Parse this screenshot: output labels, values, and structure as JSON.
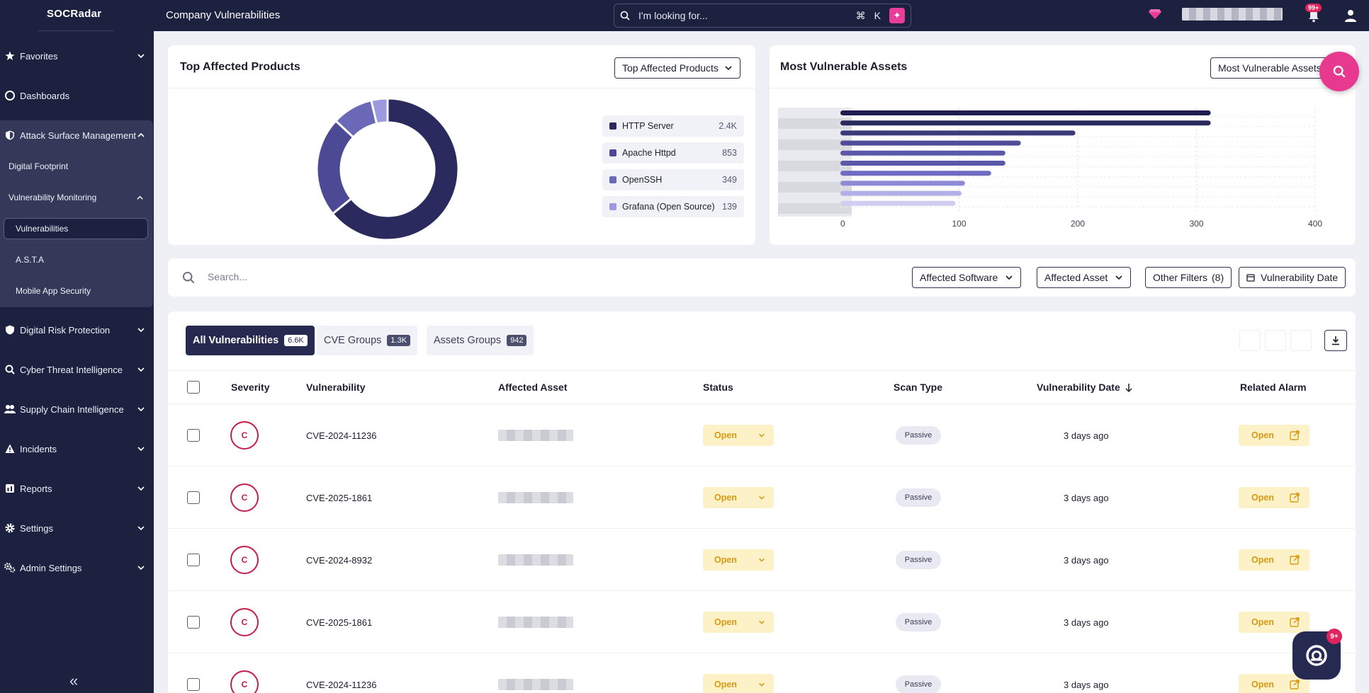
{
  "app": {
    "logo": "SOCRadar",
    "page_title": "Company Vulnerabilities"
  },
  "topbar": {
    "search_placeholder": "I'm looking for...",
    "shortcut_cmd": "⌘",
    "shortcut_key": "K",
    "notif_badge": "99+"
  },
  "sidebar": {
    "items": [
      {
        "label": "Favorites",
        "icon": "star-icon"
      },
      {
        "label": "Dashboards",
        "icon": "dashboard-icon"
      },
      {
        "label": "Attack Surface Management",
        "icon": "shield-icon"
      },
      {
        "label": "Digital Risk Protection",
        "icon": "shield-icon"
      },
      {
        "label": "Cyber Threat Intelligence",
        "icon": "search-icon"
      },
      {
        "label": "Supply Chain Intelligence",
        "icon": "people-icon"
      },
      {
        "label": "Incidents",
        "icon": "alert-icon"
      },
      {
        "label": "Reports",
        "icon": "report-icon"
      },
      {
        "label": "Settings",
        "icon": "gear-icon"
      },
      {
        "label": "Admin Settings",
        "icon": "admin-gear-icon"
      }
    ],
    "asm_sub": {
      "digital_footprint": "Digital Footprint",
      "vuln_monitoring": "Vulnerability Monitoring",
      "vulnerabilities": "Vulnerabilities",
      "asta": "A.S.T.A",
      "mobile": "Mobile App Security"
    },
    "collapse": "«"
  },
  "top_products": {
    "title": "Top Affected Products",
    "dropdown": "Top Affected Products",
    "legend": [
      {
        "label": "HTTP Server",
        "value": "2.4K",
        "color": "#2b2a5e"
      },
      {
        "label": "Apache Httpd",
        "value": "853",
        "color": "#4c4a94"
      },
      {
        "label": "OpenSSH",
        "value": "349",
        "color": "#6b68b8"
      },
      {
        "label": "Grafana (Open Source)",
        "value": "139",
        "color": "#9c99e0"
      }
    ]
  },
  "vuln_assets": {
    "title": "Most Vulnerable Assets",
    "dropdown": "Most Vulnerable Assets"
  },
  "chart_data": [
    {
      "type": "pie",
      "categories": [
        "HTTP Server",
        "Apache Httpd",
        "OpenSSH",
        "Grafana (Open Source)"
      ],
      "values": [
        2400,
        853,
        349,
        139
      ],
      "donut": true
    },
    {
      "type": "bar",
      "orientation": "horizontal",
      "values": [
        312,
        312,
        198,
        152,
        139,
        139,
        127,
        105,
        102,
        97
      ],
      "colors": [
        "#1f1d4f",
        "#2b2a5e",
        "#3b3a7a",
        "#4f4c9a",
        "#5b58aa",
        "#5b58aa",
        "#6e6bc0",
        "#8e8bd6",
        "#b2b0e6",
        "#cfcdf1"
      ],
      "xlim": [
        0,
        400
      ],
      "xticks": [
        "0",
        "100",
        "200",
        "300",
        "400"
      ]
    }
  ],
  "filters": {
    "search_placeholder": "Search...",
    "affected_software": "Affected Software",
    "affected_asset": "Affected Asset",
    "other_filters": "Other Filters",
    "other_filters_count": "(8)",
    "vuln_date": "Vulnerability Date"
  },
  "tabs": [
    {
      "label": "All Vulnerabilities",
      "count": "6.6K"
    },
    {
      "label": "CVE Groups",
      "count": "1.3K"
    },
    {
      "label": "Assets Groups",
      "count": "942"
    }
  ],
  "table": {
    "headers": {
      "severity": "Severity",
      "vulnerability": "Vulnerability",
      "asset": "Affected Asset",
      "status": "Status",
      "scan": "Scan Type",
      "date": "Vulnerability Date",
      "alarm": "Related Alarm"
    },
    "rows": [
      {
        "severity": "C",
        "vuln": "CVE-2024-11236",
        "status": "Open",
        "scan": "Passive",
        "date": "3 days ago",
        "alarm": "Open"
      },
      {
        "severity": "C",
        "vuln": "CVE-2025-1861",
        "status": "Open",
        "scan": "Passive",
        "date": "3 days ago",
        "alarm": "Open"
      },
      {
        "severity": "C",
        "vuln": "CVE-2024-8932",
        "status": "Open",
        "scan": "Passive",
        "date": "3 days ago",
        "alarm": "Open"
      },
      {
        "severity": "C",
        "vuln": "CVE-2025-1861",
        "status": "Open",
        "scan": "Passive",
        "date": "3 days ago",
        "alarm": "Open"
      },
      {
        "severity": "C",
        "vuln": "CVE-2024-11236",
        "status": "Open",
        "scan": "Passive",
        "date": "3 days ago",
        "alarm": "Open"
      }
    ]
  },
  "chat_badge": "9+"
}
